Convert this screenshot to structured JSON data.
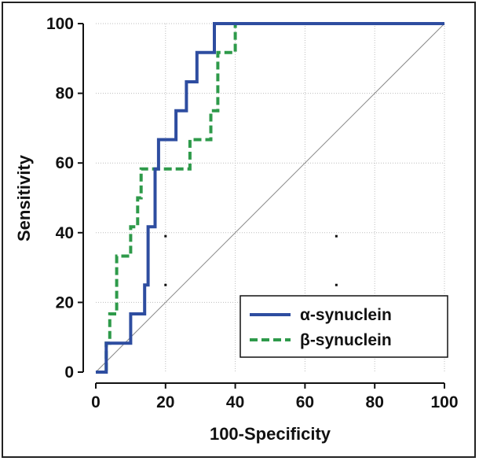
{
  "chart_data": {
    "type": "line",
    "title": "",
    "xlabel": "100-Specificity",
    "ylabel": "Sensitivity",
    "xlim": [
      0,
      100
    ],
    "ylim": [
      0,
      100
    ],
    "xticks": [
      0,
      20,
      40,
      60,
      80,
      100
    ],
    "yticks": [
      0,
      20,
      40,
      60,
      80,
      100
    ],
    "grid": true,
    "legend_position": "bottom-right",
    "reference_line": {
      "name": "chance diagonal",
      "x": [
        0,
        100
      ],
      "y": [
        0,
        100
      ],
      "color": "#888888"
    },
    "series": [
      {
        "name": "α-synuclein",
        "color": "#2E4DA0",
        "style": "solid",
        "x": [
          0,
          3,
          3,
          10,
          10,
          14,
          14,
          15,
          15,
          17,
          17,
          18,
          18,
          23,
          23,
          26,
          26,
          29,
          29,
          34,
          34,
          36,
          36,
          100
        ],
        "y": [
          0,
          0,
          8.3,
          8.3,
          16.7,
          16.7,
          25,
          25,
          41.7,
          41.7,
          58.3,
          58.3,
          66.7,
          66.7,
          75,
          75,
          83.3,
          83.3,
          91.7,
          91.7,
          100,
          100,
          100,
          100
        ]
      },
      {
        "name": "β-synuclein",
        "color": "#2E9A4A",
        "style": "dashed",
        "x": [
          0,
          3,
          3,
          4,
          4,
          6,
          6,
          10,
          10,
          12,
          12,
          13,
          13,
          27,
          27,
          33,
          33,
          35,
          35,
          40,
          40,
          100
        ],
        "y": [
          0,
          0,
          8.3,
          8.3,
          16.7,
          16.7,
          33.3,
          33.3,
          41.7,
          41.7,
          50,
          50,
          58.3,
          58.3,
          66.7,
          66.7,
          75,
          75,
          91.7,
          91.7,
          100,
          100
        ]
      }
    ],
    "annotations": [
      {
        "text": ".",
        "x": 20,
        "y": 39
      },
      {
        "text": ".",
        "x": 69,
        "y": 39
      },
      {
        "text": ".",
        "x": 20,
        "y": 25
      },
      {
        "text": ".",
        "x": 69,
        "y": 25
      }
    ]
  }
}
